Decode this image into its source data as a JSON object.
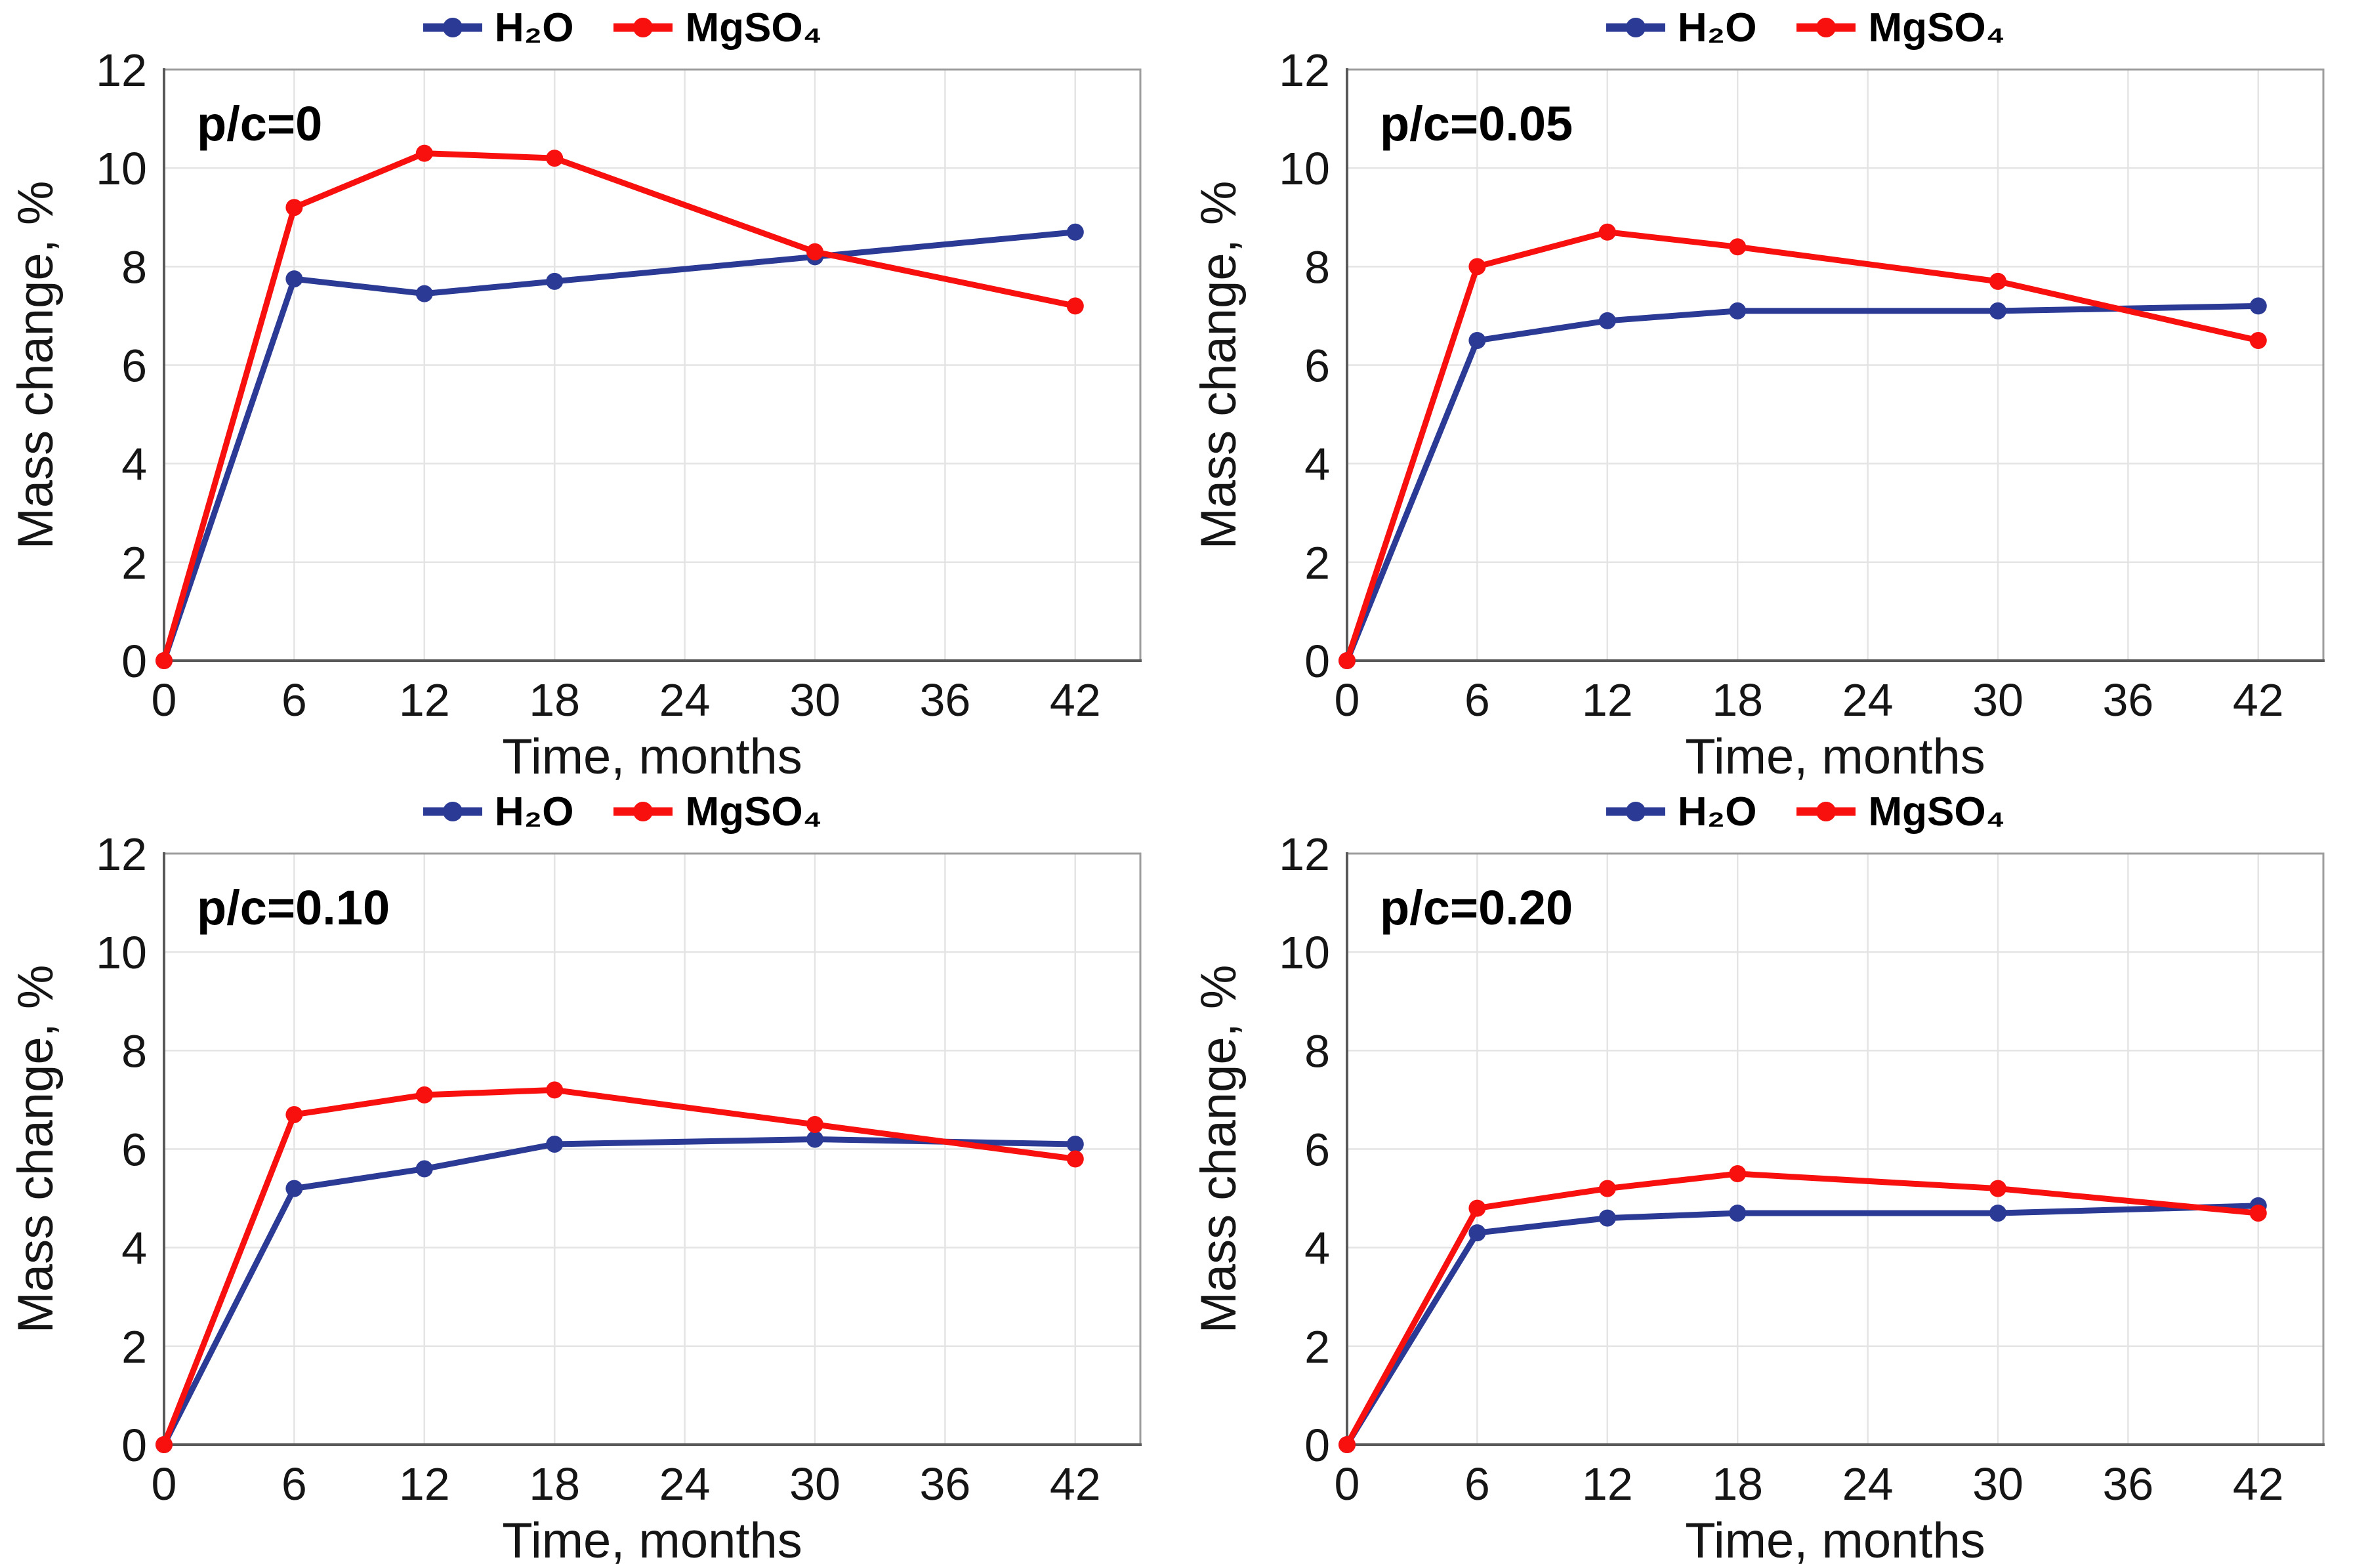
{
  "colors": {
    "h2o": "#2b3a94",
    "mgso4": "#f8100e",
    "grid": "#e4e4e4",
    "plot_border": "#9d9d9d",
    "axis_line": "#595959",
    "text": "#000000"
  },
  "legend": {
    "items": [
      {
        "label": "H₂O",
        "color": "#2b3a94"
      },
      {
        "label": "MgSO₄",
        "color": "#f8100e"
      }
    ]
  },
  "chart_data": [
    {
      "type": "line",
      "title": "p/c=0",
      "xlabel": "Time, months",
      "ylabel": "Mass change, %",
      "xlim": [
        0,
        45
      ],
      "ylim": [
        0,
        12
      ],
      "xticks": [
        0,
        6,
        12,
        18,
        24,
        30,
        36,
        42
      ],
      "yticks": [
        0,
        2,
        4,
        6,
        8,
        10,
        12
      ],
      "grid": true,
      "legend_position": "top-center",
      "x": [
        0,
        6,
        12,
        18,
        30,
        42
      ],
      "series": [
        {
          "name": "H₂O",
          "color": "#2b3a94",
          "values": [
            0,
            7.75,
            7.45,
            7.7,
            8.2,
            8.7
          ]
        },
        {
          "name": "MgSO₄",
          "color": "#f8100e",
          "values": [
            0,
            9.2,
            10.3,
            10.2,
            8.3,
            7.2
          ]
        }
      ]
    },
    {
      "type": "line",
      "title": "p/c=0.05",
      "xlabel": "Time, months",
      "ylabel": "Mass change, %",
      "xlim": [
        0,
        45
      ],
      "ylim": [
        0,
        12
      ],
      "xticks": [
        0,
        6,
        12,
        18,
        24,
        30,
        36,
        42
      ],
      "yticks": [
        0,
        2,
        4,
        6,
        8,
        10,
        12
      ],
      "grid": true,
      "legend_position": "top-center",
      "x": [
        0,
        6,
        12,
        18,
        30,
        42
      ],
      "series": [
        {
          "name": "H₂O",
          "color": "#2b3a94",
          "values": [
            0,
            6.5,
            6.9,
            7.1,
            7.1,
            7.2
          ]
        },
        {
          "name": "MgSO₄",
          "color": "#f8100e",
          "values": [
            0,
            8.0,
            8.7,
            8.4,
            7.7,
            6.5
          ]
        }
      ]
    },
    {
      "type": "line",
      "title": "p/c=0.10",
      "xlabel": "Time, months",
      "ylabel": "Mass change, %",
      "xlim": [
        0,
        45
      ],
      "ylim": [
        0,
        12
      ],
      "xticks": [
        0,
        6,
        12,
        18,
        24,
        30,
        36,
        42
      ],
      "yticks": [
        0,
        2,
        4,
        6,
        8,
        10,
        12
      ],
      "grid": true,
      "legend_position": "top-center",
      "x": [
        0,
        6,
        12,
        18,
        30,
        42
      ],
      "series": [
        {
          "name": "H₂O",
          "color": "#2b3a94",
          "values": [
            0,
            5.2,
            5.6,
            6.1,
            6.2,
            6.1
          ]
        },
        {
          "name": "MgSO₄",
          "color": "#f8100e",
          "values": [
            0,
            6.7,
            7.1,
            7.2,
            6.5,
            5.8
          ]
        }
      ]
    },
    {
      "type": "line",
      "title": "p/c=0.20",
      "xlabel": "Time, months",
      "ylabel": "Mass change, %",
      "xlim": [
        0,
        45
      ],
      "ylim": [
        0,
        12
      ],
      "xticks": [
        0,
        6,
        12,
        18,
        24,
        30,
        36,
        42
      ],
      "yticks": [
        0,
        2,
        4,
        6,
        8,
        10,
        12
      ],
      "grid": true,
      "legend_position": "top-center",
      "x": [
        0,
        6,
        12,
        18,
        30,
        42
      ],
      "series": [
        {
          "name": "H₂O",
          "color": "#2b3a94",
          "values": [
            0,
            4.3,
            4.6,
            4.7,
            4.7,
            4.85
          ]
        },
        {
          "name": "MgSO₄",
          "color": "#f8100e",
          "values": [
            0,
            4.8,
            5.2,
            5.5,
            5.2,
            4.7
          ]
        }
      ]
    }
  ]
}
